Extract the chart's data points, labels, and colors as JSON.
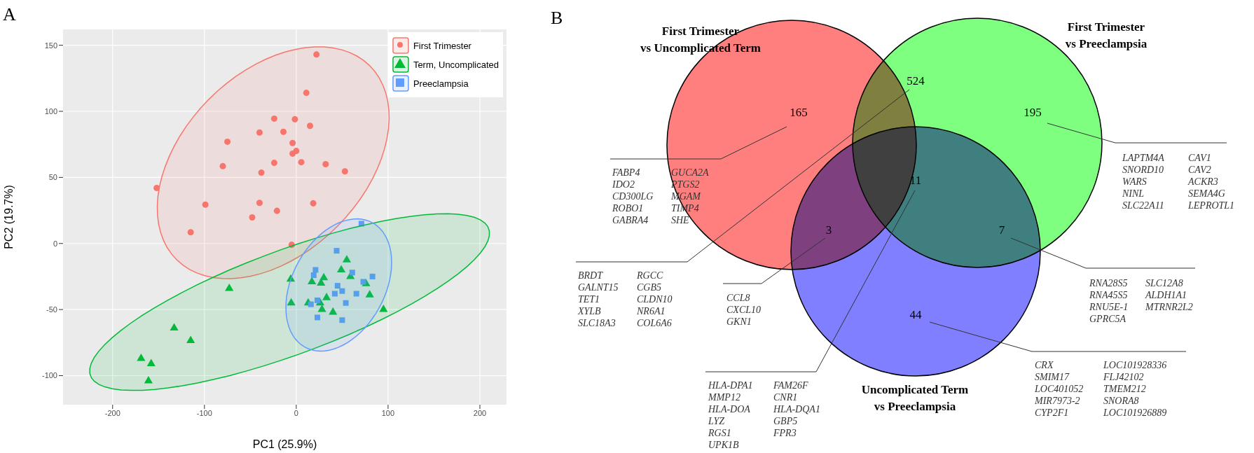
{
  "chart_data": [
    {
      "type": "scatter",
      "title": "A",
      "xlabel": "PC1 (25.9%)",
      "ylabel": "PC2 (19.7%)",
      "xlim": [
        -254,
        229
      ],
      "ylim": [
        -122,
        162
      ],
      "xticks": [
        -200,
        -100,
        0,
        100,
        200
      ],
      "yticks": [
        -100,
        -50,
        0,
        50,
        100,
        150
      ],
      "grid": true,
      "legend": "top right",
      "series": [
        {
          "name": "First Trimester",
          "color": "#f8766d",
          "marker": "circle",
          "x": [
            22,
            11,
            -24,
            -1.5,
            15,
            -40,
            -14,
            -75,
            -4,
            0,
            -4,
            -24,
            5.5,
            32,
            -80,
            53,
            -38,
            -152,
            -99,
            -40,
            18.5,
            -21,
            -48,
            -115,
            -5
          ],
          "values": [
            143,
            114,
            94.5,
            94,
            89,
            84,
            84.5,
            77,
            76,
            70,
            68,
            61,
            61.5,
            60,
            58.5,
            54.6,
            53.6,
            42,
            29.4,
            30.7,
            30.4,
            24.7,
            19.7,
            8.5,
            -1
          ]
        },
        {
          "name": "Term, Uncomplicated",
          "color": "#00ba38",
          "marker": "triangle",
          "x": [
            55,
            49,
            30,
            59,
            -6,
            17,
            27,
            76,
            80,
            33,
            25,
            13,
            26,
            -5.5,
            28,
            40,
            95,
            -73,
            -133,
            -115,
            -169,
            -158,
            -161
          ],
          "values": [
            -12.5,
            -20,
            -26,
            -25,
            -27,
            -29,
            -30,
            -30.5,
            -39,
            -41,
            null,
            -45,
            -45,
            -45,
            -50,
            -52,
            -50,
            -34,
            -64,
            -73.5,
            -87,
            -91,
            -104
          ]
        },
        {
          "name": "Preeclampsia",
          "color": "#619cff",
          "marker": "square",
          "x": [
            71,
            44,
            21,
            61,
            19,
            83,
            73,
            45,
            50,
            42,
            65.5,
            23,
            54,
            16,
            23,
            50
          ],
          "values": [
            15,
            -5.5,
            -20,
            -22,
            -24,
            -25,
            -29,
            -32,
            -36,
            -38,
            -38,
            -43,
            -45,
            -46,
            -56,
            -58
          ]
        }
      ]
    },
    {
      "type": "other",
      "title": "B",
      "series": [
        {
          "name": "First Trimester\nvs Uncomplicated Term"
        },
        {
          "name": "First Trimester\nvs Preeclampsia"
        },
        {
          "name": "Uncomplicated Term\nvs Preeclampsia"
        }
      ],
      "annotations": [
        "165",
        "524",
        "195",
        "3",
        "11",
        "7",
        "44",
        "FABP4\nIDO2\nCD300LG\nROBO1\nGABRA4\nGUCA2A\nPTGS2\nMGAM\nTIMP4\nSHE",
        "BRDT\nGALNT15\nTET1\nXYLB\nSLC18A3\nRGCC\nCGB5\nCLDN10\nNR6A1\nCOL6A6",
        "LAPTM4A\nSNORD10\nWARS\nNINL\nSLC22A11\nCAV1\nCAV2\nACKR3\nSEMA4G\nLEPROTL1",
        "CCL8\nCXCL10\nGKN1",
        "HLA-DPA1\nMMP12\nHLA-DOA\nLYZ\nRGS1\nUPK1B\nFAM26F\nCNR1\nHLA-DQA1\nGBP5\nFPR3",
        "RNA28S5\nRNA45S5\nRNU5E-1\nGPRC5A\nSLC12A8\nALDH1A1\nMTRNR2L2",
        "CRX\nSMIM17\nLOC401052\nMIR7973-2\nCYP2F1\nLOC101928336\nFLJ42102\nTMEM212\nSNORA8\nLOC101926889"
      ]
    }
  ]
}
